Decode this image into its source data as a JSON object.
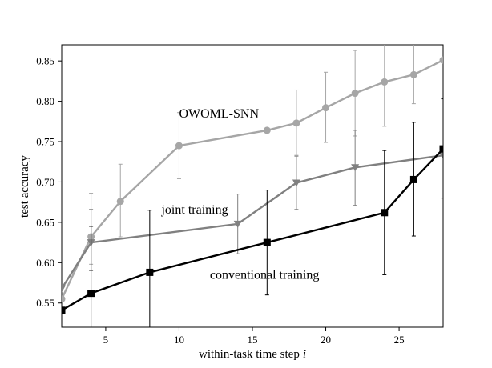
{
  "chart_data": {
    "type": "line",
    "xlabel": "within-task time step",
    "xlabel_var": "i",
    "ylabel": "test accuracy",
    "xlim": [
      2,
      28
    ],
    "ylim": [
      0.52,
      0.87
    ],
    "xticks": [
      5,
      10,
      15,
      20,
      25
    ],
    "yticks": [
      0.55,
      0.6,
      0.65,
      0.7,
      0.75,
      0.8,
      0.85
    ],
    "grid": false,
    "legend": "none",
    "series": [
      {
        "name": "OWOML-SNN",
        "color": "#a6a6a6",
        "marker": "circle",
        "x": [
          2,
          4,
          6,
          10,
          16,
          18,
          20,
          22,
          24,
          26,
          28
        ],
        "y": [
          0.555,
          0.632,
          0.676,
          0.745,
          0.764,
          0.773,
          0.792,
          0.81,
          0.824,
          0.833,
          0.851
        ],
        "err_x": [
          4,
          6,
          10,
          18,
          20,
          22,
          24,
          26
        ],
        "err_low": [
          0.598,
          0.632,
          0.704,
          0.733,
          0.749,
          0.757,
          0.769,
          0.797
        ],
        "err_high": [
          0.686,
          0.722,
          0.786,
          0.814,
          0.836,
          0.863,
          0.871,
          0.871
        ]
      },
      {
        "name": "joint training",
        "color": "#808080",
        "marker": "triangle-down",
        "x": [
          2,
          4,
          14,
          18,
          22,
          28
        ],
        "y": [
          0.568,
          0.625,
          0.648,
          0.699,
          0.718,
          0.733
        ],
        "err_x": [
          4,
          14,
          18,
          22
        ],
        "err_low": [
          0.59,
          0.611,
          0.666,
          0.671
        ],
        "err_high": [
          0.666,
          0.685,
          0.732,
          0.764
        ]
      },
      {
        "name": "conventional training",
        "color": "#000000",
        "marker": "square",
        "x": [
          2,
          4,
          8,
          16,
          24,
          26,
          28
        ],
        "y": [
          0.541,
          0.562,
          0.588,
          0.625,
          0.662,
          0.703,
          0.741
        ],
        "err_x": [
          4,
          8,
          16,
          24,
          26,
          28
        ],
        "err_low": [
          0.52,
          0.52,
          0.56,
          0.585,
          0.633,
          0.68
        ],
        "err_high": [
          0.645,
          0.665,
          0.69,
          0.739,
          0.774,
          0.803
        ]
      }
    ],
    "annotations": [
      {
        "text": "OWOML-SNN",
        "x": 10.0,
        "y": 0.78
      },
      {
        "text": "joint training",
        "x": 8.8,
        "y": 0.661
      },
      {
        "text": "conventional training",
        "x": 12.1,
        "y": 0.58
      }
    ]
  }
}
